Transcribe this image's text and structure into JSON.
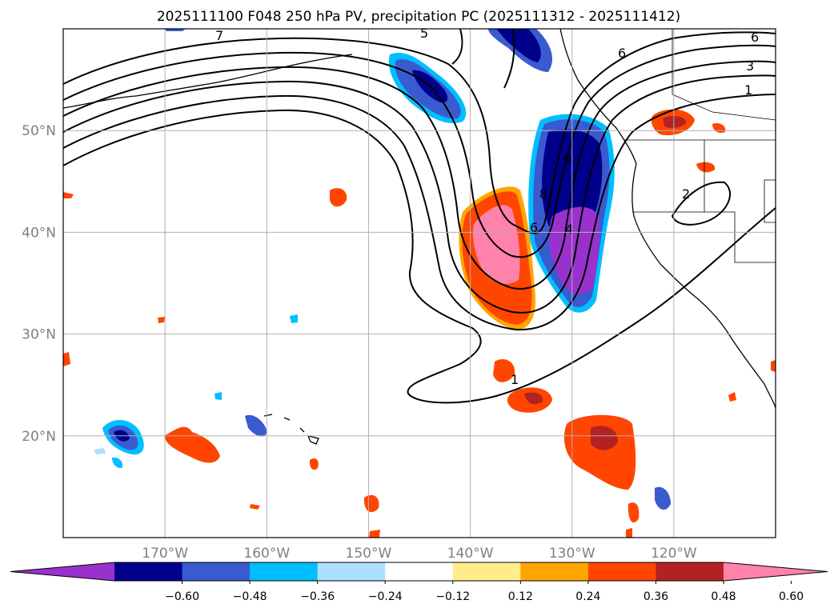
{
  "title": "2025111100 F048 250 hPa PV, precipitation PC (2025111312 - 2025111412)",
  "map": {
    "lat_ticks": [
      {
        "lat": 50,
        "label": "50°N"
      },
      {
        "lat": 40,
        "label": "40°N"
      },
      {
        "lat": 30,
        "label": "30°N"
      },
      {
        "lat": 20,
        "label": "20°N"
      }
    ],
    "lon_ticks": [
      {
        "lon": -170,
        "label": "170°W"
      },
      {
        "lon": -160,
        "label": "160°W"
      },
      {
        "lon": -150,
        "label": "150°W"
      },
      {
        "lon": -140,
        "label": "140°W"
      },
      {
        "lon": -130,
        "label": "130°W"
      },
      {
        "lon": -120,
        "label": "120°W"
      }
    ],
    "extent": {
      "lon_min": -180,
      "lon_max": -110,
      "lat_min": 10,
      "lat_max": 60
    },
    "grid": true
  },
  "colorbar": {
    "ticks": [
      "−0.60",
      "−0.48",
      "−0.36",
      "−0.24",
      "−0.12",
      "0.12",
      "0.24",
      "0.36",
      "0.48",
      "0.60"
    ],
    "colors": [
      "#9932cc",
      "#00008b",
      "#3a5bd0",
      "#00bfff",
      "#ade0ff",
      "#ffffff",
      "#ffec8b",
      "#ffa500",
      "#ff4500",
      "#b22222",
      "#ff82ab"
    ],
    "extend": "both"
  },
  "pv_contour_labels": [
    "7",
    "5",
    "6",
    "3",
    "1",
    "6",
    "8",
    "4",
    "9",
    "6",
    "2",
    "1"
  ]
}
